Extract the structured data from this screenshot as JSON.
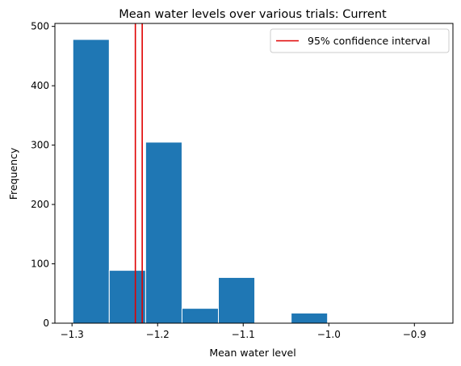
{
  "chart_data": {
    "type": "bar",
    "title": "Mean water levels over various trials: Current",
    "xlabel": "Mean water level",
    "ylabel": "Frequency",
    "xlim": [
      -1.32,
      -0.855
    ],
    "ylim": [
      0,
      505
    ],
    "xticks": [
      -1.3,
      -1.2,
      -1.1,
      -1.0,
      -0.9
    ],
    "xtick_labels": [
      "−1.3",
      "−1.2",
      "−1.1",
      "−1.0",
      "−0.9"
    ],
    "yticks": [
      0,
      100,
      200,
      300,
      400,
      500
    ],
    "ytick_labels": [
      "0",
      "100",
      "200",
      "300",
      "400",
      "500"
    ],
    "bins": [
      {
        "start": -1.299,
        "end": -1.2565,
        "count": 478
      },
      {
        "start": -1.2565,
        "end": -1.214,
        "count": 89
      },
      {
        "start": -1.214,
        "end": -1.1715,
        "count": 305
      },
      {
        "start": -1.1715,
        "end": -1.129,
        "count": 25
      },
      {
        "start": -1.129,
        "end": -1.0865,
        "count": 77
      },
      {
        "start": -1.0865,
        "end": -1.044,
        "count": 1
      },
      {
        "start": -1.044,
        "end": -1.0015,
        "count": 17
      },
      {
        "start": -1.0015,
        "end": -0.959,
        "count": 0
      },
      {
        "start": -0.959,
        "end": -0.9165,
        "count": 0
      },
      {
        "start": -0.9165,
        "end": -0.874,
        "count": 0
      }
    ],
    "bar_color": "#1f77b4",
    "confidence_interval": [
      -1.226,
      -1.218
    ],
    "ci_color": "#e00000",
    "legend": {
      "entries": [
        {
          "label": "95% confidence interval",
          "color": "#e00000"
        }
      ],
      "position": "top-right"
    },
    "grid": false
  }
}
